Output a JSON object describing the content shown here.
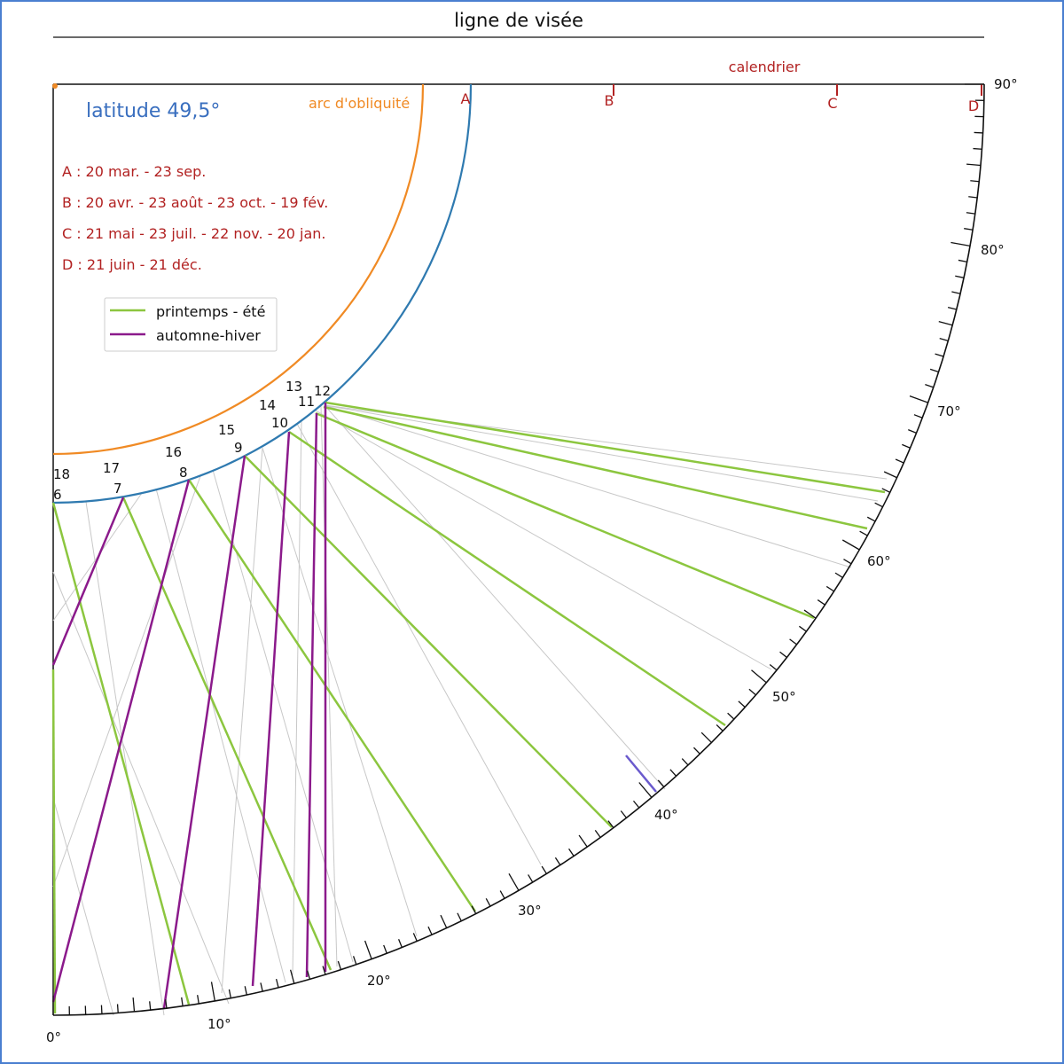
{
  "title": "ligne de visée",
  "calendar_label": "calendrier",
  "latitude_label": "latitude 49,5°",
  "obliquity_label": "arc d'obliquité",
  "latitude_deg": 49.5,
  "calendar_marks": [
    {
      "letter": "A",
      "text": "A : 20 mar. - 23 sep."
    },
    {
      "letter": "B",
      "text": "B : 20 avr. - 23 août - 23 oct. - 19 fév."
    },
    {
      "letter": "C",
      "text": "C : 21 mai - 23 juil. - 22 nov. - 20 jan."
    },
    {
      "letter": "D",
      "text": "D  : 21 juin - 21 déc."
    }
  ],
  "legend": [
    {
      "label": "printemps - été",
      "color": "#8cc63f"
    },
    {
      "label": "automne-hiver",
      "color": "#8b1a8b"
    }
  ],
  "degree_labels": [
    "0°",
    "10°",
    "20°",
    "30°",
    "40°",
    "50°",
    "60°",
    "70°",
    "80°",
    "90°"
  ],
  "hours_morning": [
    "6",
    "7",
    "8",
    "9",
    "10",
    "11",
    "12"
  ],
  "hours_afternoon": [
    "18",
    "17",
    "16",
    "15",
    "14",
    "13"
  ],
  "colors": {
    "frame": "#4a7fd0",
    "equator_arc": "#2f7ab0",
    "obliquity_arc": "#f08a24",
    "calendar": "#b22222",
    "spring_summer": "#8cc63f",
    "autumn_winter": "#8b1a8b",
    "pointer": "#6a5acd",
    "grid": "#c8c8c8"
  },
  "icons": [
    "legend-swatch"
  ]
}
